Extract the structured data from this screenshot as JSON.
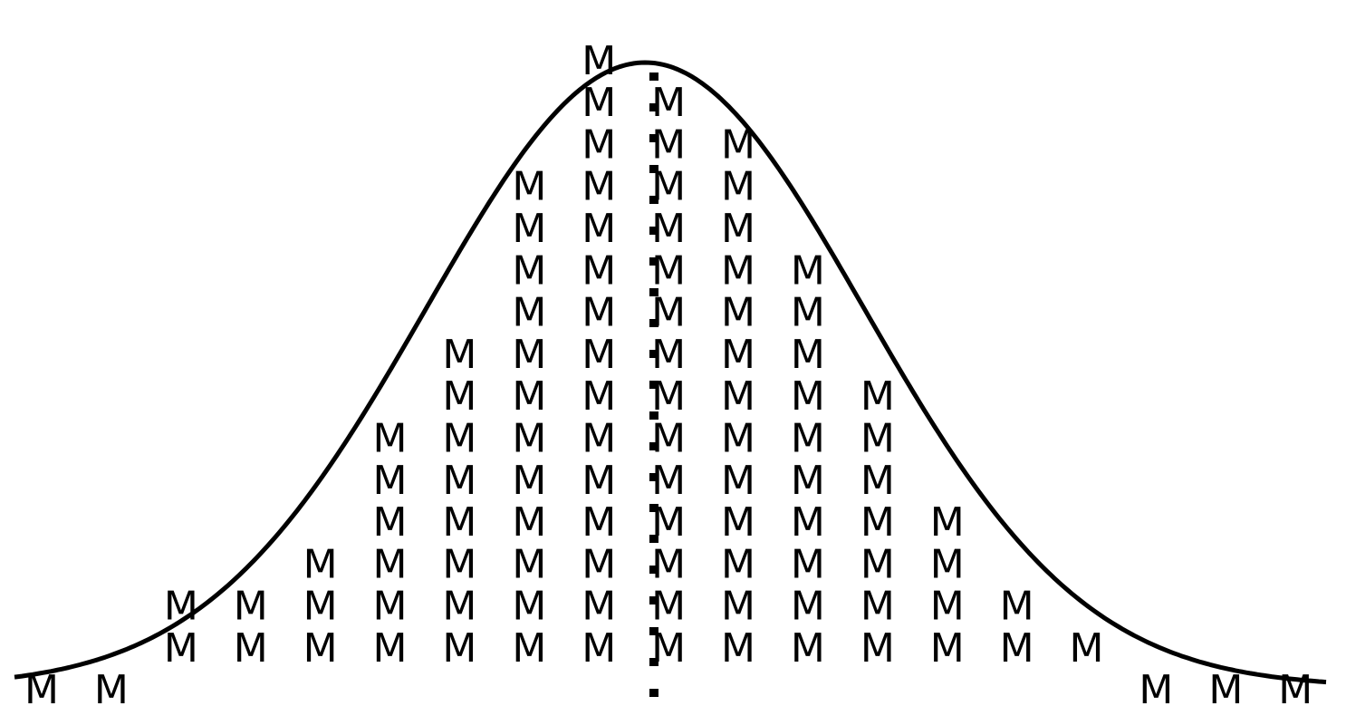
{
  "chart_data": {
    "type": "dot-histogram",
    "glyph": "M",
    "title": "",
    "xlabel": "",
    "ylabel": "",
    "columns": [
      {
        "x": 1,
        "count": 1
      },
      {
        "x": 2,
        "count": 1
      },
      {
        "x": 3,
        "count": 2
      },
      {
        "x": 4,
        "count": 2
      },
      {
        "x": 5,
        "count": 3
      },
      {
        "x": 6,
        "count": 6
      },
      {
        "x": 7,
        "count": 8
      },
      {
        "x": 8,
        "count": 12
      },
      {
        "x": 9,
        "count": 15
      },
      {
        "x": 10,
        "count": 14
      },
      {
        "x": 11,
        "count": 13
      },
      {
        "x": 12,
        "count": 10
      },
      {
        "x": 13,
        "count": 7
      },
      {
        "x": 14,
        "count": 4
      },
      {
        "x": 15,
        "count": 2
      },
      {
        "x": 16,
        "count": 1
      },
      {
        "x": 17,
        "count": 1
      },
      {
        "x": 18,
        "count": 1
      },
      {
        "x": 19,
        "count": 1
      }
    ],
    "mean_line": {
      "x": 9.79,
      "style": "dotted"
    },
    "curve": {
      "type": "normal-density-fit"
    },
    "colors": {
      "marks": "#000000",
      "curve": "#000000",
      "background": "#ffffff"
    }
  }
}
